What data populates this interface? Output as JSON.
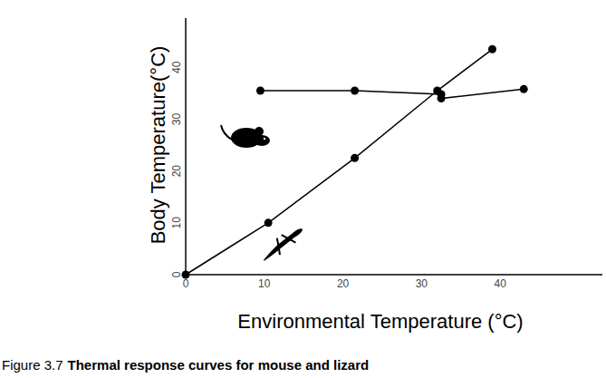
{
  "chart_data": {
    "type": "line",
    "x_label": "Environmental Temperature (°C)",
    "y_label": "Body Temperature(°C)",
    "caption_label": "Figure 3.7",
    "caption": "Thermal response curves for mouse and lizard",
    "xlim": [
      0,
      53
    ],
    "ylim": [
      0,
      49.5
    ],
    "xticks": [
      0,
      10,
      20,
      30,
      40
    ],
    "yticks": [
      0,
      10,
      20,
      30,
      40
    ],
    "grid": false,
    "series": [
      {
        "color": "#000000",
        "marker": "circle",
        "x": [
          9.5,
          21.5,
          32.5,
          32.5,
          43
        ],
        "values": [
          35.5,
          35.5,
          34.8,
          34.0,
          35.8
        ]
      },
      {
        "color": "#000000",
        "marker": "circle",
        "x": [
          0,
          10.5,
          21.5,
          32,
          39
        ],
        "values": [
          0,
          10,
          22.5,
          35.5,
          43.5
        ]
      }
    ]
  }
}
